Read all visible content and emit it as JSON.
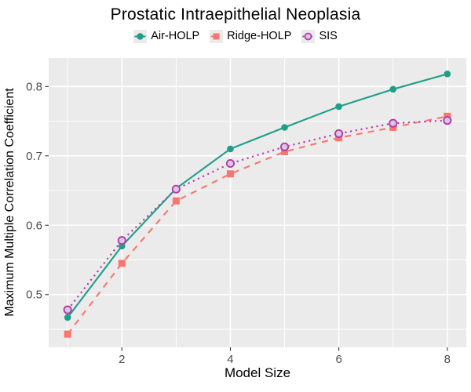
{
  "chart_data": {
    "type": "line",
    "title": "Prostatic Intraepithelial Neoplasia",
    "xlabel": "Model Size",
    "ylabel": "Maximum Multiple Correlation Coefficient",
    "x": [
      1,
      2,
      3,
      4,
      5,
      6,
      7,
      8
    ],
    "series": [
      {
        "name": "Air-HOLP",
        "color": "#1F9E89",
        "line": "solid",
        "marker": "filled-circle",
        "values": [
          0.467,
          0.57,
          0.653,
          0.71,
          0.741,
          0.771,
          0.796,
          0.818
        ]
      },
      {
        "name": "Ridge-HOLP",
        "color": "#F8766D",
        "line": "dashed",
        "marker": "filled-square",
        "values": [
          0.443,
          0.545,
          0.635,
          0.674,
          0.706,
          0.726,
          0.741,
          0.757
        ]
      },
      {
        "name": "SIS",
        "color": "#B33CA4",
        "marker_fill": "#D9C7E8",
        "line": "dotted",
        "marker": "open-circle",
        "values": [
          0.478,
          0.578,
          0.652,
          0.689,
          0.713,
          0.732,
          0.747,
          0.751
        ]
      }
    ],
    "xlim": [
      0.65,
      8.35
    ],
    "ylim": [
      0.424,
      0.841
    ],
    "x_ticks": {
      "values": [
        2,
        4,
        6,
        8
      ],
      "labels": [
        "2",
        "4",
        "6",
        "8"
      ]
    },
    "x_minor": [
      1,
      3,
      5,
      7
    ],
    "y_ticks": {
      "values": [
        0.5,
        0.6,
        0.7,
        0.8
      ],
      "labels": [
        "0.5",
        "0.6",
        "0.7",
        "0.8"
      ]
    },
    "y_minor": [
      0.45,
      0.55,
      0.65,
      0.75
    ],
    "grid": true,
    "legend_position": "top",
    "panel_bg": "#EBEBEB",
    "grid_color": "#FFFFFF",
    "tick_mark_color": "#333333",
    "tick_label_color": "#4D4D4D"
  }
}
